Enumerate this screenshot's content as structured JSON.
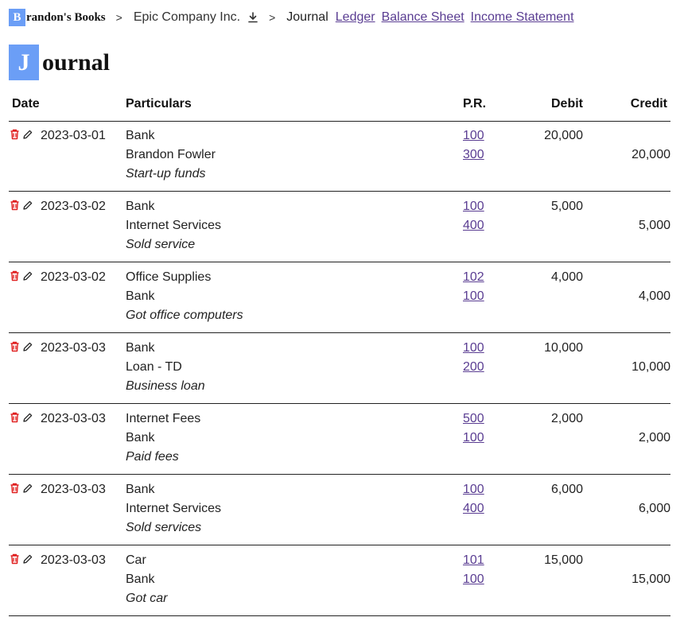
{
  "breadcrumb": {
    "brand_initial": "B",
    "brand_rest": "randon's Books",
    "company": "Epic Company Inc.",
    "current": "Journal",
    "links": [
      "Ledger",
      "Balance Sheet",
      "Income Statement"
    ],
    "separator": ">"
  },
  "page": {
    "title_initial": "J",
    "title_rest": "ournal"
  },
  "columns": {
    "date": "Date",
    "particulars": "Particulars",
    "pr": "P.R.",
    "debit": "Debit",
    "credit": "Credit"
  },
  "icons": {
    "delete": "trash-icon",
    "edit": "pencil-icon",
    "download": "download-icon"
  },
  "colors": {
    "accent": "#6b9ef6",
    "link": "#5a3d92",
    "delete": "#e02020"
  },
  "entries": [
    {
      "date": "2023-03-01",
      "debit_account": "Bank",
      "debit_pr": "100",
      "debit_amount": "20,000",
      "credit_account": "Brandon Fowler",
      "credit_pr": "300",
      "credit_amount": "20,000",
      "memo": "Start-up funds"
    },
    {
      "date": "2023-03-02",
      "debit_account": "Bank",
      "debit_pr": "100",
      "debit_amount": "5,000",
      "credit_account": "Internet Services",
      "credit_pr": "400",
      "credit_amount": "5,000",
      "memo": "Sold service"
    },
    {
      "date": "2023-03-02",
      "debit_account": "Office Supplies",
      "debit_pr": "102",
      "debit_amount": "4,000",
      "credit_account": "Bank",
      "credit_pr": "100",
      "credit_amount": "4,000",
      "memo": "Got office computers"
    },
    {
      "date": "2023-03-03",
      "debit_account": "Bank",
      "debit_pr": "100",
      "debit_amount": "10,000",
      "credit_account": "Loan - TD",
      "credit_pr": "200",
      "credit_amount": "10,000",
      "memo": "Business loan"
    },
    {
      "date": "2023-03-03",
      "debit_account": "Internet Fees",
      "debit_pr": "500",
      "debit_amount": "2,000",
      "credit_account": "Bank",
      "credit_pr": "100",
      "credit_amount": "2,000",
      "memo": "Paid fees"
    },
    {
      "date": "2023-03-03",
      "debit_account": "Bank",
      "debit_pr": "100",
      "debit_amount": "6,000",
      "credit_account": "Internet Services",
      "credit_pr": "400",
      "credit_amount": "6,000",
      "memo": "Sold services"
    },
    {
      "date": "2023-03-03",
      "debit_account": "Car",
      "debit_pr": "101",
      "debit_amount": "15,000",
      "credit_account": "Bank",
      "credit_pr": "100",
      "credit_amount": "15,000",
      "memo": "Got car"
    }
  ]
}
